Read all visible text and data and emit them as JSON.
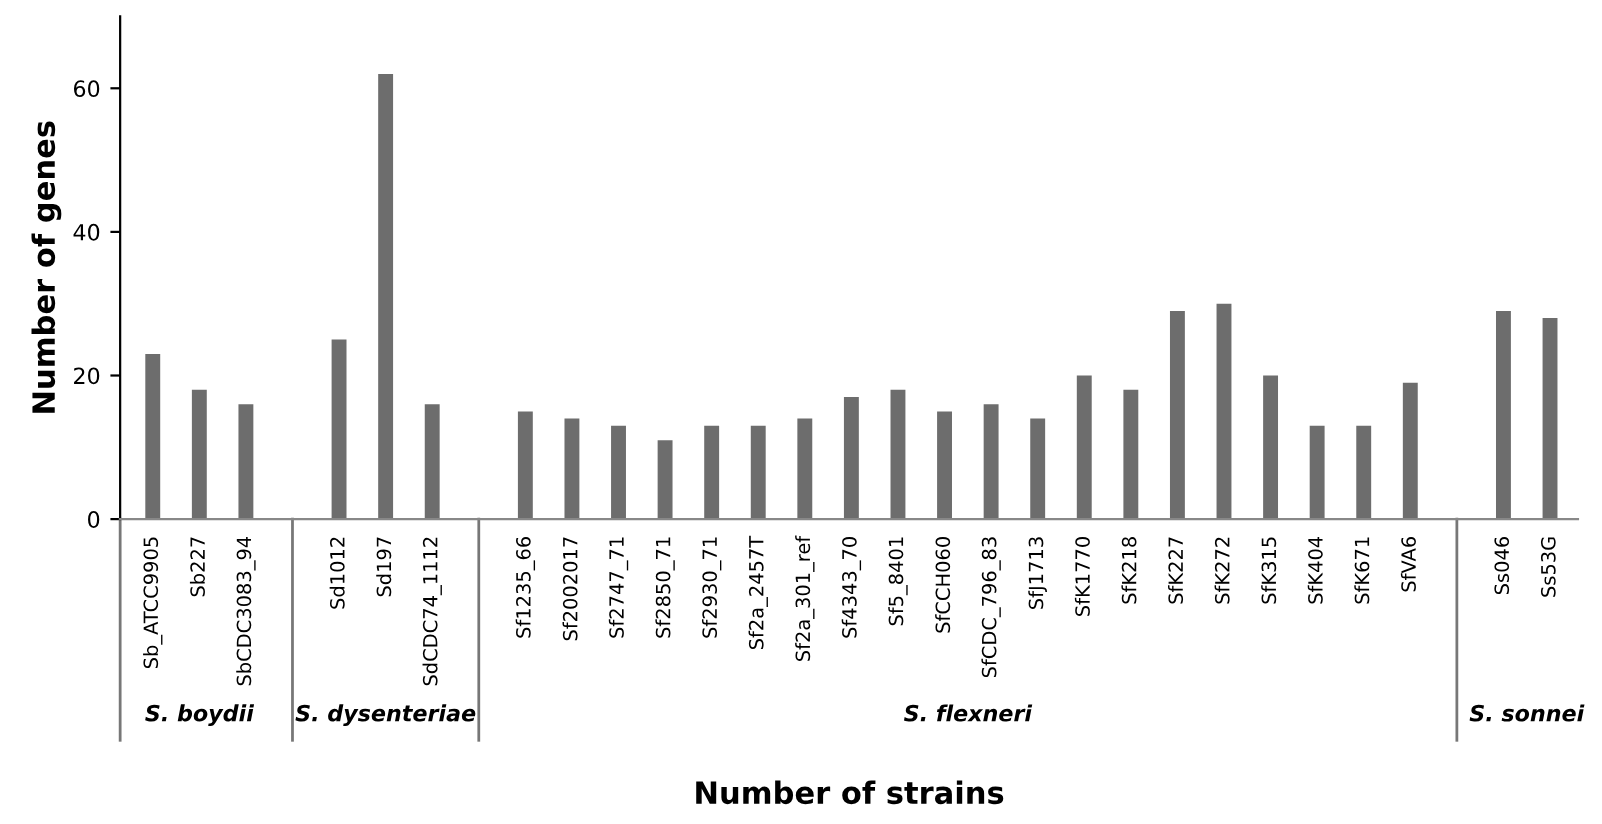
{
  "chart_data": {
    "type": "bar",
    "xlabel": "Number of strains",
    "ylabel": "Number of genes",
    "categories": [
      "Sb_ATCC9905",
      "Sb227",
      "SbCDC3083_94",
      null,
      "Sd1012",
      "Sd197",
      "SdCDC74_1112",
      null,
      "Sf1235_66",
      "Sf2002017",
      "Sf2747_71",
      "Sf2850_71",
      "Sf2930_71",
      "Sf2a_2457T",
      "Sf2a_301_ref",
      "Sf4343_70",
      "Sf5_8401",
      "SfCCH060",
      "SfCDC_796_83",
      "SfJ1713",
      "SfK1770",
      "SfK218",
      "SfK227",
      "SfK272",
      "SfK315",
      "SfK404",
      "SfK671",
      "SfVA6",
      null,
      "Ss046",
      "Ss53G"
    ],
    "values": [
      23,
      18,
      16,
      null,
      25,
      62,
      16,
      null,
      15,
      14,
      13,
      11,
      13,
      13,
      14,
      17,
      18,
      15,
      16,
      14,
      20,
      18,
      29,
      30,
      20,
      13,
      13,
      19,
      null,
      29,
      28
    ],
    "color": "#6d6d6d",
    "ylim": [
      0,
      70
    ],
    "yticks": [
      0,
      20,
      40,
      60
    ],
    "grid": false,
    "annotations": [
      "S. boydii",
      "S. dysenteriae",
      "S. flexneri",
      "S. sonnei"
    ]
  }
}
